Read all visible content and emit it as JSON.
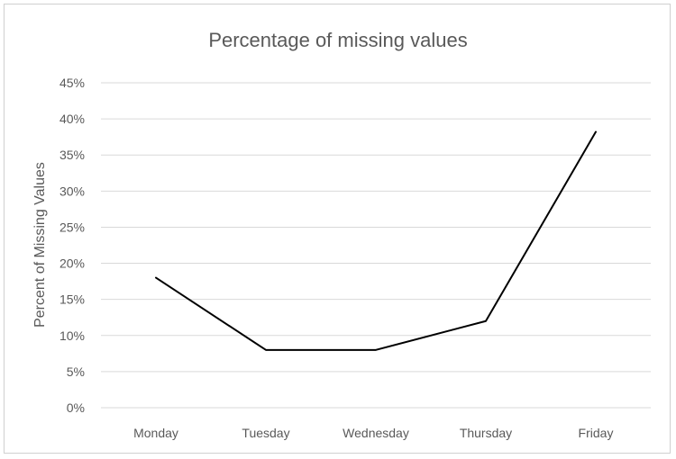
{
  "chart_data": {
    "type": "line",
    "title": "Percentage of missing values",
    "xlabel": "",
    "ylabel": "Percent of Missing Values",
    "categories": [
      "Monday",
      "Tuesday",
      "Wednesday",
      "Thursday",
      "Friday"
    ],
    "series": [
      {
        "values": [
          18,
          8,
          8,
          12,
          38.2
        ]
      }
    ],
    "ylim": [
      0,
      45
    ],
    "y_ticks": [
      "0%",
      "5%",
      "10%",
      "15%",
      "20%",
      "25%",
      "30%",
      "35%",
      "40%",
      "45%"
    ],
    "grid": true,
    "legend": "none",
    "line_color": "#000000"
  }
}
